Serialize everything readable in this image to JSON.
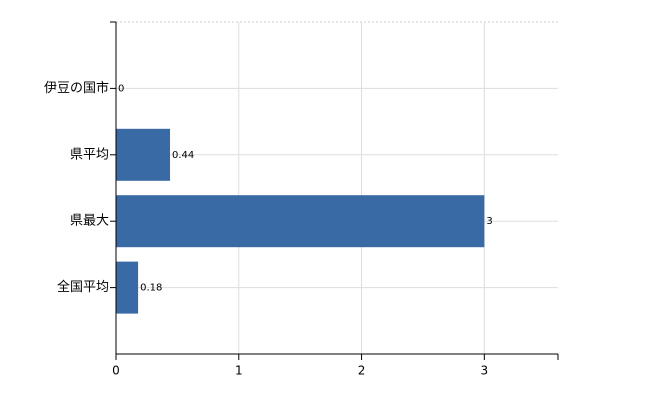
{
  "chart_data": {
    "type": "bar",
    "orientation": "horizontal",
    "categories": [
      "伊豆の国市",
      "県平均",
      "県最大",
      "全国平均"
    ],
    "values": [
      0,
      0.44,
      3,
      0.18
    ],
    "color": "#3a6aa5",
    "xlim": [
      0,
      3.6
    ],
    "xticks": [
      0,
      1,
      2,
      3
    ],
    "grid": true
  }
}
